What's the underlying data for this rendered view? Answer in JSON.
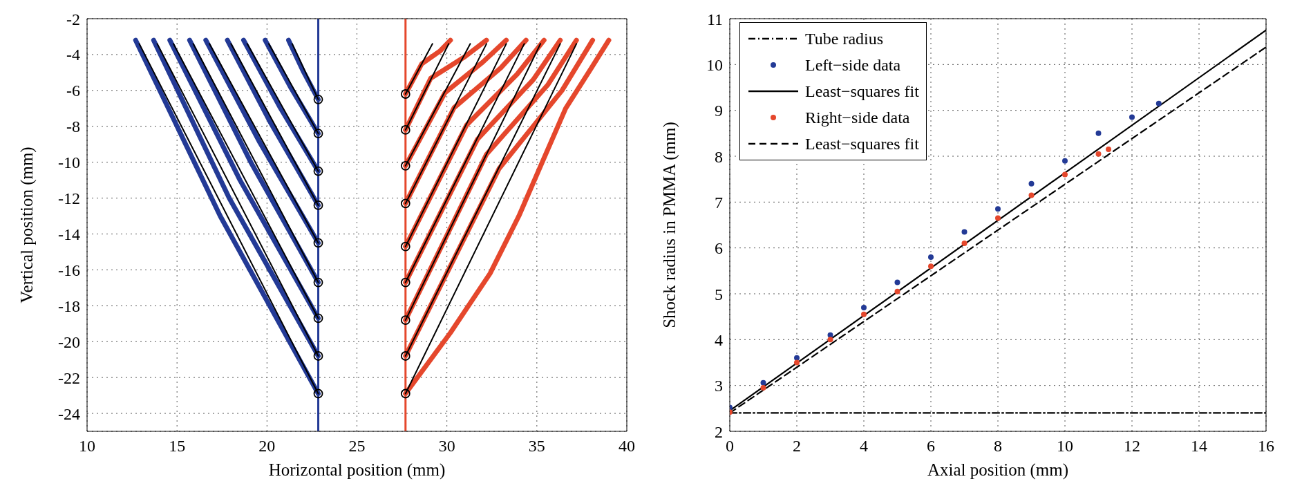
{
  "chart_data": [
    {
      "type": "line",
      "xlabel": "Horizontal position (mm)",
      "ylabel": "Vertical position (mm)",
      "xlim": [
        10,
        40
      ],
      "xticks": [
        10,
        15,
        20,
        25,
        30,
        35,
        40
      ],
      "ylim": [
        -25,
        -2
      ],
      "yticks": [
        -24,
        -22,
        -20,
        -18,
        -16,
        -14,
        -12,
        -10,
        -8,
        -6,
        -4,
        -2
      ],
      "grid": true,
      "legend": false,
      "ref_lines": [
        {
          "axis": "x",
          "value": 22.85,
          "color": "#233a96"
        },
        {
          "axis": "x",
          "value": 27.7,
          "color": "#e5472c"
        }
      ],
      "series": [
        {
          "color": "#233a96",
          "x": [
            21.2,
            22.0,
            22.85
          ],
          "values": [
            -3.2,
            -4.9,
            -6.5
          ]
        },
        {
          "color": "#233a96",
          "x": [
            19.9,
            21.3,
            22.85
          ],
          "values": [
            -3.2,
            -5.8,
            -8.4
          ]
        },
        {
          "color": "#233a96",
          "x": [
            18.7,
            20.7,
            22.85
          ],
          "values": [
            -3.2,
            -6.9,
            -10.5
          ]
        },
        {
          "color": "#233a96",
          "x": [
            17.8,
            20.2,
            22.85
          ],
          "values": [
            -3.2,
            -7.8,
            -12.4
          ]
        },
        {
          "color": "#233a96",
          "x": [
            16.6,
            19.6,
            22.85
          ],
          "values": [
            -3.2,
            -8.9,
            -14.5
          ]
        },
        {
          "color": "#233a96",
          "x": [
            15.7,
            19.1,
            22.85
          ],
          "values": [
            -3.2,
            -10.0,
            -16.7
          ]
        },
        {
          "color": "#233a96",
          "x": [
            14.6,
            18.5,
            22.85
          ],
          "values": [
            -3.2,
            -11.0,
            -18.7
          ]
        },
        {
          "color": "#233a96",
          "x": [
            13.7,
            17.9,
            22.85
          ],
          "values": [
            -3.2,
            -12.0,
            -20.8
          ]
        },
        {
          "color": "#233a96",
          "x": [
            12.7,
            17.4,
            22.85
          ],
          "values": [
            -3.2,
            -13.0,
            -22.9
          ]
        },
        {
          "color": "#e5472c",
          "x": [
            27.7,
            28.6,
            29.6,
            30.2
          ],
          "values": [
            -6.2,
            -4.52,
            -3.82,
            -3.2
          ]
        },
        {
          "color": "#e5472c",
          "x": [
            27.7,
            29.1,
            31.0,
            32.2
          ],
          "values": [
            -8.2,
            -5.32,
            -4.12,
            -3.2
          ]
        },
        {
          "color": "#e5472c",
          "x": [
            27.7,
            29.9,
            32.0,
            33.3
          ],
          "values": [
            -10.2,
            -6.12,
            -4.42,
            -3.2
          ]
        },
        {
          "color": "#e5472c",
          "x": [
            27.7,
            30.4,
            33.0,
            34.4
          ],
          "values": [
            -12.3,
            -6.96,
            -4.74,
            -3.2
          ]
        },
        {
          "color": "#e5472c",
          "x": [
            27.7,
            31.1,
            33.9,
            35.4
          ],
          "values": [
            -14.7,
            -7.92,
            -5.1,
            -3.2
          ]
        },
        {
          "color": "#e5472c",
          "x": [
            27.7,
            31.7,
            34.8,
            36.3
          ],
          "values": [
            -16.7,
            -8.72,
            -5.4,
            -3.2
          ]
        },
        {
          "color": "#e5472c",
          "x": [
            27.7,
            32.2,
            35.6,
            37.2
          ],
          "values": [
            -18.8,
            -9.56,
            -5.7,
            -3.2
          ]
        },
        {
          "color": "#e5472c",
          "x": [
            27.7,
            32.9,
            36.4,
            38.1
          ],
          "values": [
            -20.8,
            -10.36,
            -6.0,
            -3.2
          ]
        },
        {
          "color": "#e5472c",
          "x": [
            27.7,
            30.2,
            32.4,
            34.0,
            35.3,
            36.6,
            38.0,
            39.0
          ],
          "values": [
            -22.9,
            -19.5,
            -16.2,
            -13.0,
            -10.0,
            -7.0,
            -4.8,
            -3.2
          ]
        },
        {
          "color": "#000000",
          "x": [
            21.4,
            22.85
          ],
          "values": [
            -3.4,
            -6.5
          ]
        },
        {
          "color": "#000000",
          "x": [
            20.1,
            22.85
          ],
          "values": [
            -3.4,
            -8.4
          ]
        },
        {
          "color": "#000000",
          "x": [
            18.9,
            22.85
          ],
          "values": [
            -3.4,
            -10.5
          ]
        },
        {
          "color": "#000000",
          "x": [
            18.0,
            22.85
          ],
          "values": [
            -3.4,
            -12.4
          ]
        },
        {
          "color": "#000000",
          "x": [
            16.8,
            22.85
          ],
          "values": [
            -3.4,
            -14.5
          ]
        },
        {
          "color": "#000000",
          "x": [
            15.9,
            22.85
          ],
          "values": [
            -3.4,
            -16.7
          ]
        },
        {
          "color": "#000000",
          "x": [
            14.8,
            22.85
          ],
          "values": [
            -3.4,
            -18.7
          ]
        },
        {
          "color": "#000000",
          "x": [
            13.9,
            22.85
          ],
          "values": [
            -3.4,
            -20.8
          ]
        },
        {
          "color": "#000000",
          "x": [
            12.9,
            22.85
          ],
          "values": [
            -3.4,
            -22.9
          ]
        },
        {
          "color": "#000000",
          "x": [
            27.7,
            29.2
          ],
          "values": [
            -6.2,
            -3.4
          ]
        },
        {
          "color": "#000000",
          "x": [
            27.7,
            30.1
          ],
          "values": [
            -8.2,
            -3.4
          ]
        },
        {
          "color": "#000000",
          "x": [
            27.7,
            31.3
          ],
          "values": [
            -10.2,
            -3.4
          ]
        },
        {
          "color": "#000000",
          "x": [
            27.7,
            32.2
          ],
          "values": [
            -12.3,
            -3.4
          ]
        },
        {
          "color": "#000000",
          "x": [
            27.7,
            33.3
          ],
          "values": [
            -14.7,
            -3.4
          ]
        },
        {
          "color": "#000000",
          "x": [
            27.7,
            34.3
          ],
          "values": [
            -16.7,
            -3.4
          ]
        },
        {
          "color": "#000000",
          "x": [
            27.7,
            35.2
          ],
          "values": [
            -18.8,
            -3.4
          ]
        },
        {
          "color": "#000000",
          "x": [
            27.7,
            36.3
          ],
          "values": [
            -20.8,
            -3.4
          ]
        },
        {
          "color": "#000000",
          "x": [
            27.7,
            37.2
          ],
          "values": [
            -22.9,
            -3.4
          ]
        },
        {
          "type": "scatter",
          "marker": "circle",
          "color": "#000000",
          "x": [
            22.85,
            22.85,
            22.85,
            22.85,
            22.85,
            22.85,
            22.85,
            22.85,
            22.85
          ],
          "values": [
            -6.5,
            -8.4,
            -10.5,
            -12.4,
            -14.5,
            -16.7,
            -18.7,
            -20.8,
            -22.9
          ]
        },
        {
          "type": "scatter",
          "marker": "circle",
          "color": "#000000",
          "x": [
            27.7,
            27.7,
            27.7,
            27.7,
            27.7,
            27.7,
            27.7,
            27.7,
            27.7
          ],
          "values": [
            -6.2,
            -8.2,
            -10.2,
            -12.3,
            -14.7,
            -16.7,
            -18.8,
            -20.8,
            -22.9
          ]
        }
      ]
    },
    {
      "type": "line",
      "xlabel": "Axial position (mm)",
      "ylabel": "Shock radius in PMMA (mm)",
      "xlim": [
        0,
        16
      ],
      "xticks": [
        0,
        2,
        4,
        6,
        8,
        10,
        12,
        14,
        16
      ],
      "ylim": [
        2,
        11
      ],
      "yticks": [
        2,
        3,
        4,
        5,
        6,
        7,
        8,
        9,
        10,
        11
      ],
      "grid": true,
      "legend": "top left",
      "series": [
        {
          "name": "Tube radius",
          "color": "#000000",
          "line_style": "dashdot",
          "x": [
            0,
            16
          ],
          "values": [
            2.4,
            2.4
          ]
        },
        {
          "name": "Left−side data",
          "type": "scatter",
          "marker": "circle",
          "color": "#233a96",
          "x": [
            0,
            1,
            2,
            3,
            4,
            5,
            6,
            7,
            8,
            9,
            10,
            11,
            12,
            12.8
          ],
          "values": [
            2.52,
            3.06,
            3.6,
            4.1,
            4.7,
            5.25,
            5.8,
            6.35,
            6.85,
            7.4,
            7.9,
            8.5,
            8.85,
            9.15
          ]
        },
        {
          "name": "Least−squares fit",
          "color": "#000000",
          "line_style": "solid",
          "x": [
            0,
            16
          ],
          "values": [
            2.45,
            10.75
          ]
        },
        {
          "name": "Right−side data",
          "type": "scatter",
          "marker": "circle",
          "color": "#e5472c",
          "x": [
            0,
            1,
            2,
            3,
            4,
            5,
            6,
            7,
            8,
            9,
            10,
            11,
            11.3
          ],
          "values": [
            2.42,
            2.95,
            3.5,
            4.0,
            4.55,
            5.05,
            5.6,
            6.1,
            6.65,
            7.15,
            7.6,
            8.05,
            8.15
          ]
        },
        {
          "name": "Least−squares fit",
          "color": "#000000",
          "line_style": "dashed",
          "x": [
            0,
            16
          ],
          "values": [
            2.4,
            10.38
          ]
        }
      ]
    }
  ]
}
